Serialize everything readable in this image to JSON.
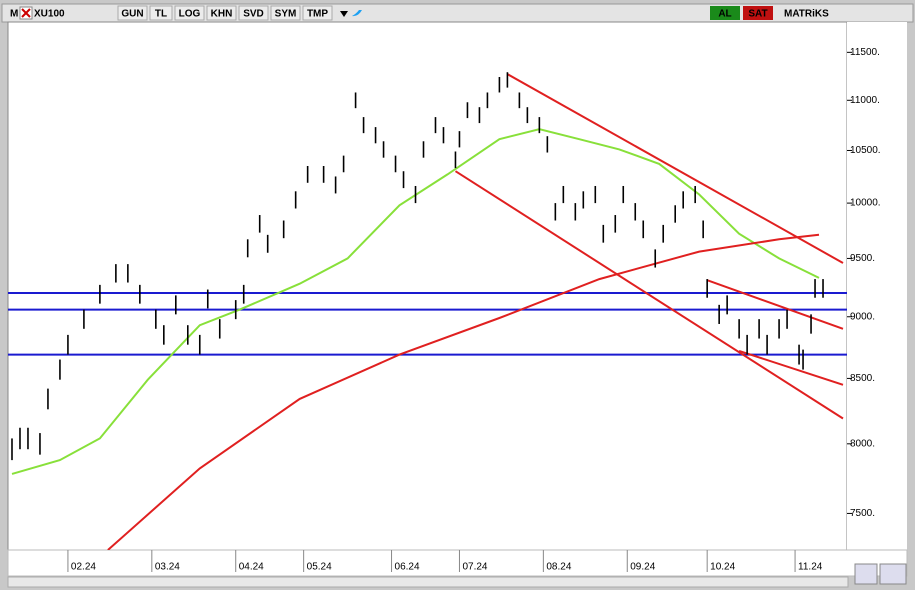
{
  "toolbar": {
    "logo": "M",
    "symbol": "XU100",
    "buttons": [
      "GUN",
      "TL",
      "LOG",
      "KHN",
      "SVD",
      "SYM",
      "TMP"
    ],
    "actions": [
      "AL",
      "SAT"
    ],
    "brand": "MATRiKS"
  },
  "chart_data": {
    "type": "ohlc",
    "log": true,
    "xlim": [
      0,
      210
    ],
    "xticks": [
      {
        "value": 15,
        "label": "02.24"
      },
      {
        "value": 36,
        "label": "03.24"
      },
      {
        "value": 57,
        "label": "04.24"
      },
      {
        "value": 74,
        "label": "05.24"
      },
      {
        "value": 96,
        "label": "06.24"
      },
      {
        "value": 113,
        "label": "07.24"
      },
      {
        "value": 134,
        "label": "08.24"
      },
      {
        "value": 155,
        "label": "09.24"
      },
      {
        "value": 175,
        "label": "10.24"
      },
      {
        "value": 197,
        "label": "11.24"
      }
    ],
    "ylim": [
      7250,
      11850
    ],
    "yticks": [
      {
        "value": 7500,
        "label": "7500."
      },
      {
        "value": 8000,
        "label": "8000."
      },
      {
        "value": 8500,
        "label": "8500."
      },
      {
        "value": 9000,
        "label": "9000."
      },
      {
        "value": 9500,
        "label": "9500."
      },
      {
        "value": 10000,
        "label": "10000."
      },
      {
        "value": 10500,
        "label": "10500."
      },
      {
        "value": 11000,
        "label": "11000."
      },
      {
        "value": 11500,
        "label": "11500."
      }
    ],
    "bars": {
      "color": "#000000",
      "x": [
        1,
        3,
        5,
        8,
        10,
        13,
        15,
        19,
        23,
        27,
        30,
        33,
        37,
        39,
        42,
        45,
        48,
        50,
        53,
        57,
        59,
        60,
        63,
        65,
        69,
        72,
        75,
        79,
        82,
        84,
        87,
        89,
        92,
        94,
        97,
        99,
        102,
        104,
        107,
        109,
        112,
        113,
        115,
        118,
        120,
        123,
        125,
        128,
        130,
        133,
        135,
        137,
        139,
        142,
        144,
        147,
        149,
        152,
        154,
        157,
        159,
        162,
        164,
        167,
        169,
        172,
        174,
        175,
        178,
        180,
        183,
        185,
        188,
        190,
        193,
        195,
        198,
        199,
        201,
        202,
        204
      ],
      "high": [
        8040,
        8120,
        8120,
        8080,
        8420,
        8650,
        8850,
        9060,
        9270,
        9450,
        9450,
        9270,
        9060,
        8930,
        9180,
        8930,
        8850,
        9230,
        8980,
        9140,
        9270,
        9670,
        9890,
        9710,
        9840,
        10110,
        10350,
        10350,
        10250,
        10450,
        11080,
        10830,
        10730,
        10590,
        10450,
        10300,
        10160,
        10590,
        10830,
        10730,
        10490,
        10690,
        10980,
        10930,
        11080,
        11240,
        11290,
        11080,
        10930,
        10830,
        10640,
        10000,
        10160,
        10000,
        10110,
        10160,
        9800,
        9890,
        10160,
        10000,
        9840,
        9580,
        9800,
        9980,
        10110,
        10160,
        9840,
        9320,
        9100,
        9180,
        8980,
        8850,
        8980,
        8850,
        8980,
        9060,
        8770,
        8730,
        9020,
        9320,
        9320
      ],
      "low": [
        7880,
        7960,
        7960,
        7920,
        8260,
        8490,
        8690,
        8900,
        9110,
        9290,
        9290,
        9110,
        8900,
        8770,
        9020,
        8770,
        8690,
        9070,
        8820,
        8980,
        9110,
        9510,
        9730,
        9550,
        9680,
        9950,
        10190,
        10190,
        10090,
        10290,
        10920,
        10670,
        10570,
        10430,
        10290,
        10140,
        10000,
        10430,
        10670,
        10570,
        10330,
        10530,
        10820,
        10770,
        10920,
        11080,
        11130,
        10920,
        10770,
        10670,
        10480,
        9840,
        10000,
        9840,
        9950,
        10000,
        9640,
        9730,
        10000,
        9840,
        9680,
        9420,
        9640,
        9820,
        9950,
        10000,
        9680,
        9160,
        8940,
        9020,
        8820,
        8690,
        8820,
        8690,
        8820,
        8900,
        8610,
        8570,
        8860,
        9160,
        9160
      ]
    },
    "lines": [
      {
        "color": "#88e03a",
        "x": [
          1,
          13,
          23,
          35,
          48,
          58,
          73,
          85,
          98,
          110,
          123,
          133,
          143,
          153,
          163,
          173,
          183,
          193,
          203
        ],
        "values": [
          7780,
          7880,
          8040,
          8490,
          8930,
          9060,
          9280,
          9500,
          9980,
          10270,
          10610,
          10710,
          10610,
          10510,
          10370,
          10080,
          9720,
          9500,
          9330
        ]
      },
      {
        "color": "#e02020",
        "x": [
          25,
          48,
          73,
          98,
          123,
          148,
          173,
          193,
          203
        ],
        "values": [
          7250,
          7820,
          8340,
          8690,
          8990,
          9320,
          9560,
          9670,
          9710
        ]
      }
    ],
    "trendlines": {
      "color": "#e02020",
      "lines": [
        {
          "x": [
            125,
            209
          ],
          "values": [
            11270,
            9460
          ]
        },
        {
          "x": [
            112,
            209
          ],
          "values": [
            10300,
            8190
          ]
        },
        {
          "x": [
            175,
            209
          ],
          "values": [
            9310,
            8900
          ]
        },
        {
          "x": [
            183,
            209
          ],
          "values": [
            8720,
            8450
          ]
        }
      ]
    },
    "hlines": {
      "color": "#1a1ad0",
      "values": [
        9200,
        9060,
        8690
      ]
    }
  }
}
